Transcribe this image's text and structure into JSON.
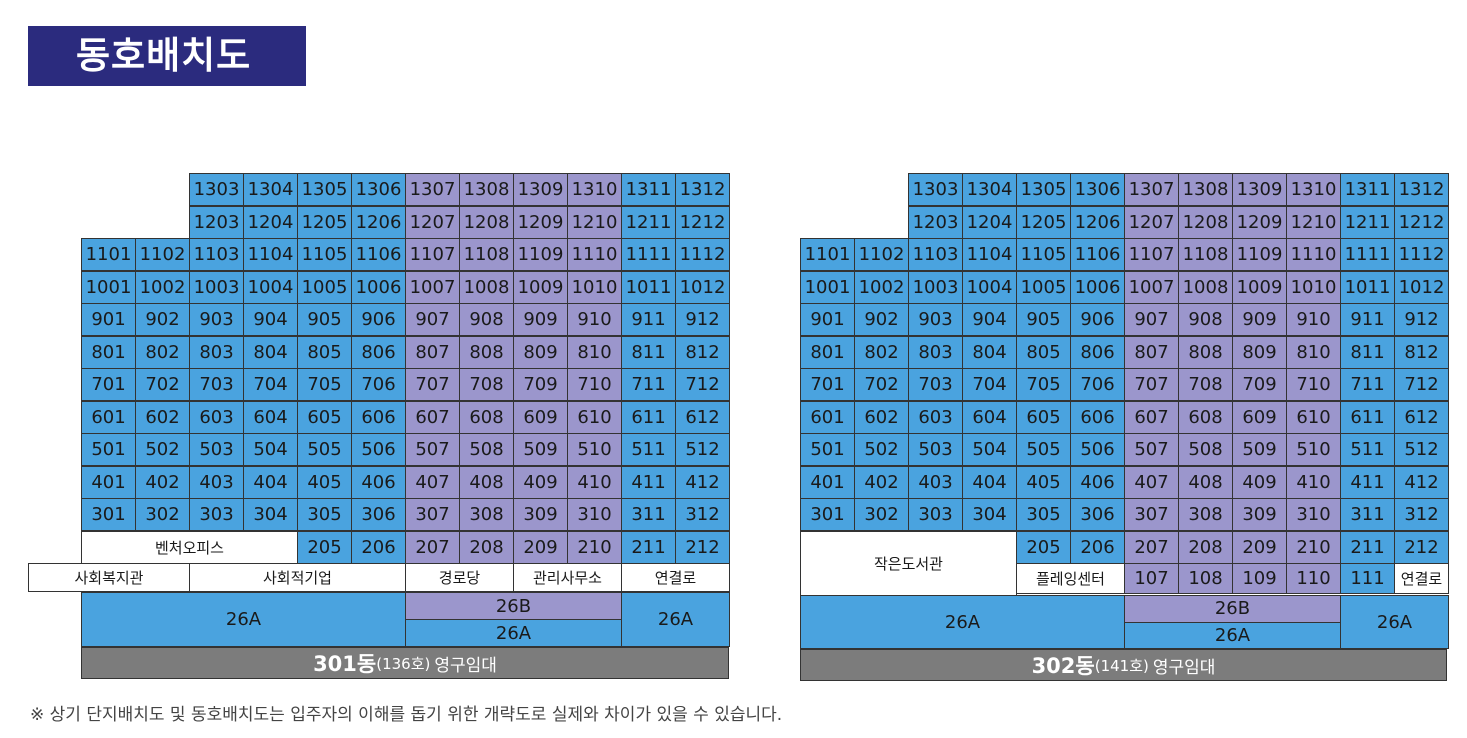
{
  "title": "동호배치도",
  "note": "※ 상기 단지배치도 및 동호배치도는 입주자의 이해를 돕기 위한 개략도로 실제와 차이가 있을 수 있습니다.",
  "colors": {
    "blue": "#4aa3df",
    "purple": "#9b96cc",
    "navy": "#2b2b7e",
    "gray": "#7c7c7c"
  },
  "buildings": [
    {
      "name": "301동",
      "count": "(136호)",
      "type": "영구임대",
      "floor13": [
        "1303",
        "1304",
        "1305",
        "1306",
        "1307",
        "1308",
        "1309",
        "1310",
        "1311",
        "1312"
      ],
      "floor12": [
        "1203",
        "1204",
        "1205",
        "1206",
        "1207",
        "1208",
        "1209",
        "1210",
        "1211",
        "1212"
      ],
      "floors_full": [
        [
          "1101",
          "1102",
          "1103",
          "1104",
          "1105",
          "1106",
          "1107",
          "1108",
          "1109",
          "1110",
          "1111",
          "1112"
        ],
        [
          "1001",
          "1002",
          "1003",
          "1004",
          "1005",
          "1006",
          "1007",
          "1008",
          "1009",
          "1010",
          "1011",
          "1012"
        ],
        [
          "901",
          "902",
          "903",
          "904",
          "905",
          "906",
          "907",
          "908",
          "909",
          "910",
          "911",
          "912"
        ],
        [
          "801",
          "802",
          "803",
          "804",
          "805",
          "806",
          "807",
          "808",
          "809",
          "810",
          "811",
          "812"
        ],
        [
          "701",
          "702",
          "703",
          "704",
          "705",
          "706",
          "707",
          "708",
          "709",
          "710",
          "711",
          "712"
        ],
        [
          "601",
          "602",
          "603",
          "604",
          "605",
          "606",
          "607",
          "608",
          "609",
          "610",
          "611",
          "612"
        ],
        [
          "501",
          "502",
          "503",
          "504",
          "505",
          "506",
          "507",
          "508",
          "509",
          "510",
          "511",
          "512"
        ],
        [
          "401",
          "402",
          "403",
          "404",
          "405",
          "406",
          "407",
          "408",
          "409",
          "410",
          "411",
          "412"
        ],
        [
          "301",
          "302",
          "303",
          "304",
          "305",
          "306",
          "307",
          "308",
          "309",
          "310",
          "311",
          "312"
        ]
      ],
      "floor2_label": "벤처오피스",
      "floor2": [
        "205",
        "206",
        "207",
        "208",
        "209",
        "210",
        "211",
        "212"
      ],
      "floor1": [
        "사회복지관",
        "사회적기업",
        "경로당",
        "관리사무소",
        "연결로"
      ],
      "basement": {
        "left": "26A",
        "mid_top": "26B",
        "mid_bottom": "26A",
        "right": "26A"
      }
    },
    {
      "name": "302동",
      "count": "(141호)",
      "type": "영구임대",
      "floor13": [
        "1303",
        "1304",
        "1305",
        "1306",
        "1307",
        "1308",
        "1309",
        "1310",
        "1311",
        "1312"
      ],
      "floor12": [
        "1203",
        "1204",
        "1205",
        "1206",
        "1207",
        "1208",
        "1209",
        "1210",
        "1211",
        "1212"
      ],
      "floors_full": [
        [
          "1101",
          "1102",
          "1103",
          "1104",
          "1105",
          "1106",
          "1107",
          "1108",
          "1109",
          "1110",
          "1111",
          "1112"
        ],
        [
          "1001",
          "1002",
          "1003",
          "1004",
          "1005",
          "1006",
          "1007",
          "1008",
          "1009",
          "1010",
          "1011",
          "1012"
        ],
        [
          "901",
          "902",
          "903",
          "904",
          "905",
          "906",
          "907",
          "908",
          "909",
          "910",
          "911",
          "912"
        ],
        [
          "801",
          "802",
          "803",
          "804",
          "805",
          "806",
          "807",
          "808",
          "809",
          "810",
          "811",
          "812"
        ],
        [
          "701",
          "702",
          "703",
          "704",
          "705",
          "706",
          "707",
          "708",
          "709",
          "710",
          "711",
          "712"
        ],
        [
          "601",
          "602",
          "603",
          "604",
          "605",
          "606",
          "607",
          "608",
          "609",
          "610",
          "611",
          "612"
        ],
        [
          "501",
          "502",
          "503",
          "504",
          "505",
          "506",
          "507",
          "508",
          "509",
          "510",
          "511",
          "512"
        ],
        [
          "401",
          "402",
          "403",
          "404",
          "405",
          "406",
          "407",
          "408",
          "409",
          "410",
          "411",
          "412"
        ],
        [
          "301",
          "302",
          "303",
          "304",
          "305",
          "306",
          "307",
          "308",
          "309",
          "310",
          "311",
          "312"
        ]
      ],
      "floor2_label": "작은도서관",
      "floor2": [
        "205",
        "206",
        "207",
        "208",
        "209",
        "210",
        "211",
        "212"
      ],
      "floor1_label": "플레잉센터",
      "floor1": [
        "107",
        "108",
        "109",
        "110",
        "111"
      ],
      "floor1_end": "연결로",
      "basement": {
        "left": "26A",
        "mid_top": "26B",
        "mid_bottom": "26A",
        "right": "26A"
      }
    }
  ]
}
